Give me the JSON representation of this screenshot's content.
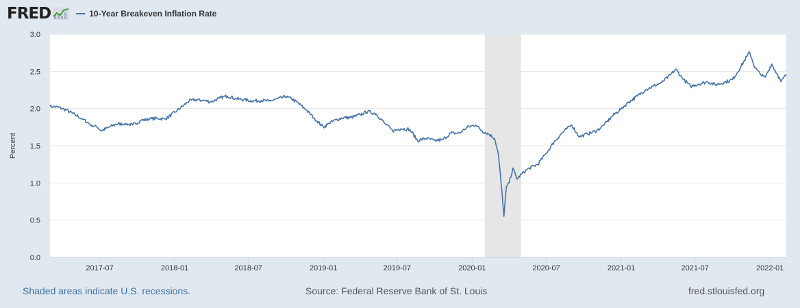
{
  "header": {
    "logo_text": "FRED",
    "logo_icon": "chart-line-icon",
    "legend_label": "10-Year Breakeven Inflation Rate"
  },
  "colors": {
    "series": "#4572a7",
    "recession_band": "#e6e6e6",
    "gridline": "#e6e6e6",
    "page_background": "#e1e9f0",
    "plot_background": "#ffffff"
  },
  "chart_data": {
    "type": "line",
    "title": "",
    "xlabel": "",
    "ylabel": "Percent",
    "ylim": [
      0,
      3.0
    ],
    "xlim": [
      "2017-03-01",
      "2022-02-10"
    ],
    "y_ticks": [
      "0.0",
      "0.5",
      "1.0",
      "1.5",
      "2.0",
      "2.5",
      "3.0"
    ],
    "x_ticks": [
      {
        "label": "2017-07",
        "date": "2017-07-01"
      },
      {
        "label": "2018-01",
        "date": "2018-01-01"
      },
      {
        "label": "2018-07",
        "date": "2018-07-01"
      },
      {
        "label": "2019-01",
        "date": "2019-01-01"
      },
      {
        "label": "2019-07",
        "date": "2019-07-01"
      },
      {
        "label": "2020-01",
        "date": "2020-01-01"
      },
      {
        "label": "2020-07",
        "date": "2020-07-01"
      },
      {
        "label": "2021-01",
        "date": "2021-01-01"
      },
      {
        "label": "2021-07",
        "date": "2021-07-01"
      },
      {
        "label": "2022-01",
        "date": "2022-01-01"
      }
    ],
    "grid": true,
    "legend": "top-left",
    "recessions": [
      {
        "start": "2020-02-01",
        "end": "2020-04-30"
      }
    ],
    "series": [
      {
        "name": "10-Year Breakeven Inflation Rate",
        "points": [
          [
            "2017-03-01",
            2.03
          ],
          [
            "2017-03-20",
            2.02
          ],
          [
            "2017-04-10",
            1.98
          ],
          [
            "2017-05-01",
            1.92
          ],
          [
            "2017-05-20",
            1.86
          ],
          [
            "2017-06-10",
            1.78
          ],
          [
            "2017-06-25",
            1.75
          ],
          [
            "2017-07-05",
            1.7
          ],
          [
            "2017-07-20",
            1.74
          ],
          [
            "2017-08-10",
            1.79
          ],
          [
            "2017-09-01",
            1.8
          ],
          [
            "2017-09-20",
            1.78
          ],
          [
            "2017-10-10",
            1.84
          ],
          [
            "2017-11-01",
            1.86
          ],
          [
            "2017-11-20",
            1.87
          ],
          [
            "2017-12-10",
            1.86
          ],
          [
            "2018-01-01",
            1.95
          ],
          [
            "2018-01-20",
            2.03
          ],
          [
            "2018-02-05",
            2.1
          ],
          [
            "2018-02-20",
            2.12
          ],
          [
            "2018-03-10",
            2.11
          ],
          [
            "2018-04-01",
            2.09
          ],
          [
            "2018-04-20",
            2.14
          ],
          [
            "2018-05-10",
            2.17
          ],
          [
            "2018-06-01",
            2.13
          ],
          [
            "2018-06-20",
            2.12
          ],
          [
            "2018-07-10",
            2.1
          ],
          [
            "2018-08-01",
            2.11
          ],
          [
            "2018-08-20",
            2.1
          ],
          [
            "2018-09-10",
            2.13
          ],
          [
            "2018-10-01",
            2.16
          ],
          [
            "2018-10-15",
            2.13
          ],
          [
            "2018-11-01",
            2.07
          ],
          [
            "2018-11-20",
            1.98
          ],
          [
            "2018-12-10",
            1.87
          ],
          [
            "2019-01-01",
            1.75
          ],
          [
            "2019-01-15",
            1.8
          ],
          [
            "2019-02-01",
            1.85
          ],
          [
            "2019-02-20",
            1.88
          ],
          [
            "2019-03-10",
            1.88
          ],
          [
            "2019-04-01",
            1.92
          ],
          [
            "2019-04-20",
            1.96
          ],
          [
            "2019-05-10",
            1.93
          ],
          [
            "2019-06-01",
            1.8
          ],
          [
            "2019-06-20",
            1.7
          ],
          [
            "2019-07-10",
            1.73
          ],
          [
            "2019-08-01",
            1.72
          ],
          [
            "2019-08-20",
            1.57
          ],
          [
            "2019-09-10",
            1.6
          ],
          [
            "2019-10-01",
            1.57
          ],
          [
            "2019-10-20",
            1.58
          ],
          [
            "2019-11-10",
            1.67
          ],
          [
            "2019-12-01",
            1.67
          ],
          [
            "2019-12-20",
            1.75
          ],
          [
            "2020-01-10",
            1.78
          ],
          [
            "2020-01-25",
            1.7
          ],
          [
            "2020-02-10",
            1.66
          ],
          [
            "2020-02-25",
            1.6
          ],
          [
            "2020-03-05",
            1.4
          ],
          [
            "2020-03-12",
            1.0
          ],
          [
            "2020-03-19",
            0.55
          ],
          [
            "2020-03-25",
            0.95
          ],
          [
            "2020-04-01",
            1.0
          ],
          [
            "2020-04-10",
            1.2
          ],
          [
            "2020-04-20",
            1.05
          ],
          [
            "2020-05-01",
            1.12
          ],
          [
            "2020-05-20",
            1.2
          ],
          [
            "2020-06-10",
            1.25
          ],
          [
            "2020-07-01",
            1.4
          ],
          [
            "2020-07-20",
            1.55
          ],
          [
            "2020-08-10",
            1.68
          ],
          [
            "2020-09-01",
            1.78
          ],
          [
            "2020-09-20",
            1.62
          ],
          [
            "2020-10-10",
            1.66
          ],
          [
            "2020-11-01",
            1.7
          ],
          [
            "2020-11-20",
            1.78
          ],
          [
            "2020-12-10",
            1.9
          ],
          [
            "2021-01-01",
            2.0
          ],
          [
            "2021-01-20",
            2.09
          ],
          [
            "2021-02-10",
            2.17
          ],
          [
            "2021-03-01",
            2.25
          ],
          [
            "2021-03-20",
            2.3
          ],
          [
            "2021-04-10",
            2.35
          ],
          [
            "2021-05-01",
            2.45
          ],
          [
            "2021-05-15",
            2.53
          ],
          [
            "2021-06-01",
            2.4
          ],
          [
            "2021-06-20",
            2.3
          ],
          [
            "2021-07-10",
            2.33
          ],
          [
            "2021-08-01",
            2.36
          ],
          [
            "2021-08-20",
            2.32
          ],
          [
            "2021-09-10",
            2.35
          ],
          [
            "2021-10-01",
            2.39
          ],
          [
            "2021-10-20",
            2.55
          ],
          [
            "2021-11-05",
            2.7
          ],
          [
            "2021-11-12",
            2.76
          ],
          [
            "2021-11-25",
            2.55
          ],
          [
            "2021-12-10",
            2.45
          ],
          [
            "2021-12-20",
            2.42
          ],
          [
            "2022-01-05",
            2.6
          ],
          [
            "2022-01-20",
            2.45
          ],
          [
            "2022-01-28",
            2.36
          ],
          [
            "2022-02-10",
            2.46
          ]
        ]
      }
    ]
  },
  "footer": {
    "recession_note": "Shaded areas indicate U.S. recessions.",
    "source": "Source: Federal Reserve Bank of St. Louis",
    "site": "fred.stlouisfed.org"
  }
}
